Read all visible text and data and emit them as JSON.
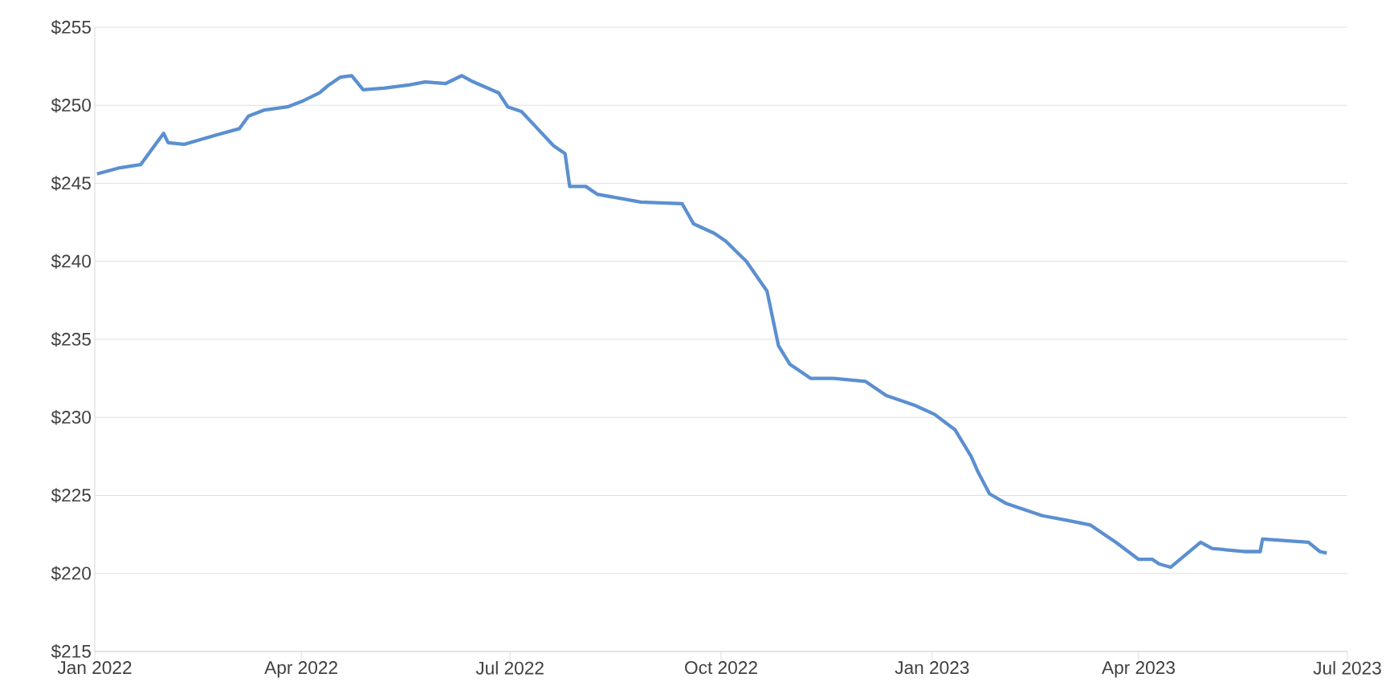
{
  "chart_data": {
    "type": "line",
    "x": [
      "2022-01-02",
      "2022-01-12",
      "2022-01-21",
      "2022-01-24",
      "2022-01-27",
      "2022-01-31",
      "2022-02-02",
      "2022-02-09",
      "2022-02-16",
      "2022-02-23",
      "2022-03-05",
      "2022-03-09",
      "2022-03-16",
      "2022-03-26",
      "2022-04-02",
      "2022-04-09",
      "2022-04-13",
      "2022-04-18",
      "2022-04-23",
      "2022-04-28",
      "2022-05-07",
      "2022-05-18",
      "2022-05-25",
      "2022-06-03",
      "2022-06-10",
      "2022-06-15",
      "2022-06-26",
      "2022-06-30",
      "2022-07-06",
      "2022-07-13",
      "2022-07-20",
      "2022-07-25",
      "2022-07-27",
      "2022-08-03",
      "2022-08-08",
      "2022-08-27",
      "2022-09-14",
      "2022-09-19",
      "2022-09-28",
      "2022-10-03",
      "2022-10-12",
      "2022-10-21",
      "2022-10-26",
      "2022-10-31",
      "2022-11-09",
      "2022-11-19",
      "2022-12-03",
      "2022-12-12",
      "2022-12-24",
      "2023-01-02",
      "2023-01-11",
      "2023-01-18",
      "2023-01-21",
      "2023-01-26",
      "2023-02-02",
      "2023-02-18",
      "2023-03-01",
      "2023-03-11",
      "2023-03-22",
      "2023-04-01",
      "2023-04-07",
      "2023-04-10",
      "2023-04-15",
      "2023-04-28",
      "2023-05-03",
      "2023-05-17",
      "2023-05-24",
      "2023-05-25",
      "2023-06-14",
      "2023-06-19",
      "2023-06-22"
    ],
    "series": [
      {
        "color": "#5b8fd0",
        "values": [
          245.6,
          246.0,
          246.2,
          246.8,
          247.4,
          248.2,
          247.6,
          247.5,
          247.8,
          248.1,
          248.5,
          249.3,
          249.7,
          249.9,
          250.3,
          250.8,
          251.3,
          251.8,
          251.9,
          251.0,
          251.1,
          251.3,
          251.5,
          251.4,
          251.9,
          251.5,
          250.8,
          249.9,
          249.6,
          248.5,
          247.4,
          246.9,
          244.8,
          244.8,
          244.3,
          243.8,
          243.7,
          242.4,
          241.8,
          241.3,
          240.0,
          238.1,
          234.6,
          233.4,
          232.5,
          232.5,
          232.3,
          231.4,
          230.8,
          230.2,
          229.2,
          227.5,
          226.5,
          225.1,
          224.5,
          223.7,
          223.4,
          223.1,
          222.0,
          220.9,
          220.9,
          220.6,
          220.4,
          222.0,
          221.6,
          221.4,
          221.4,
          222.2,
          222.0,
          221.4,
          221.3
        ]
      }
    ],
    "xlim": [
      "2022-01-01",
      "2023-07-01"
    ],
    "xticks": [
      {
        "value": "2022-01-01",
        "label": "Jan 2022"
      },
      {
        "value": "2022-04-01",
        "label": "Apr 2022"
      },
      {
        "value": "2022-07-01",
        "label": "Jul 2022"
      },
      {
        "value": "2022-10-01",
        "label": "Oct 2022"
      },
      {
        "value": "2023-01-01",
        "label": "Jan 2023"
      },
      {
        "value": "2023-04-01",
        "label": "Apr 2023"
      },
      {
        "value": "2023-07-01",
        "label": "Jul 2023"
      }
    ],
    "ylim": [
      215,
      255
    ],
    "yticks": [
      {
        "value": 215,
        "label": "$215"
      },
      {
        "value": 220,
        "label": "$220"
      },
      {
        "value": 225,
        "label": "$225"
      },
      {
        "value": 230,
        "label": "$230"
      },
      {
        "value": 235,
        "label": "$235"
      },
      {
        "value": 240,
        "label": "$240"
      },
      {
        "value": 245,
        "label": "$245"
      },
      {
        "value": 250,
        "label": "$250"
      },
      {
        "value": 255,
        "label": "$255"
      }
    ],
    "grid": "y",
    "marker": "none",
    "line_style": "solid"
  }
}
